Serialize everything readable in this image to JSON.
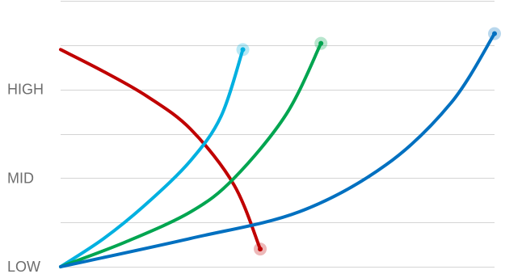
{
  "chart_data": {
    "type": "line",
    "title": "",
    "xlabel": "",
    "ylabel": "",
    "y_tick_labels": [
      {
        "label": "LOW",
        "value": 0
      },
      {
        "label": "MID",
        "value": 1
      },
      {
        "label": "HIGH",
        "value": 2
      }
    ],
    "xlim": [
      0,
      100
    ],
    "ylim": [
      0,
      2.9
    ],
    "grid": true,
    "legend": "none",
    "series": [
      {
        "color": "#c00000",
        "end_marker": true,
        "points": [
          [
            0,
            2.45
          ],
          [
            10,
            2.2
          ],
          [
            20,
            1.92
          ],
          [
            30,
            1.55
          ],
          [
            40,
            0.92
          ],
          [
            46,
            0.2
          ]
        ]
      },
      {
        "color": "#00b0e0",
        "end_marker": true,
        "points": [
          [
            0,
            0
          ],
          [
            10,
            0.32
          ],
          [
            20,
            0.72
          ],
          [
            30,
            1.2
          ],
          [
            37,
            1.7
          ],
          [
            42,
            2.45
          ]
        ]
      },
      {
        "color": "#00a550",
        "end_marker": true,
        "points": [
          [
            0,
            0
          ],
          [
            15,
            0.28
          ],
          [
            30,
            0.62
          ],
          [
            40,
            1.0
          ],
          [
            52,
            1.72
          ],
          [
            60,
            2.52
          ]
        ]
      },
      {
        "color": "#0070c0",
        "end_marker": true,
        "points": [
          [
            0,
            0
          ],
          [
            30,
            0.32
          ],
          [
            55,
            0.62
          ],
          [
            75,
            1.15
          ],
          [
            90,
            1.85
          ],
          [
            100,
            2.63
          ]
        ]
      }
    ]
  }
}
